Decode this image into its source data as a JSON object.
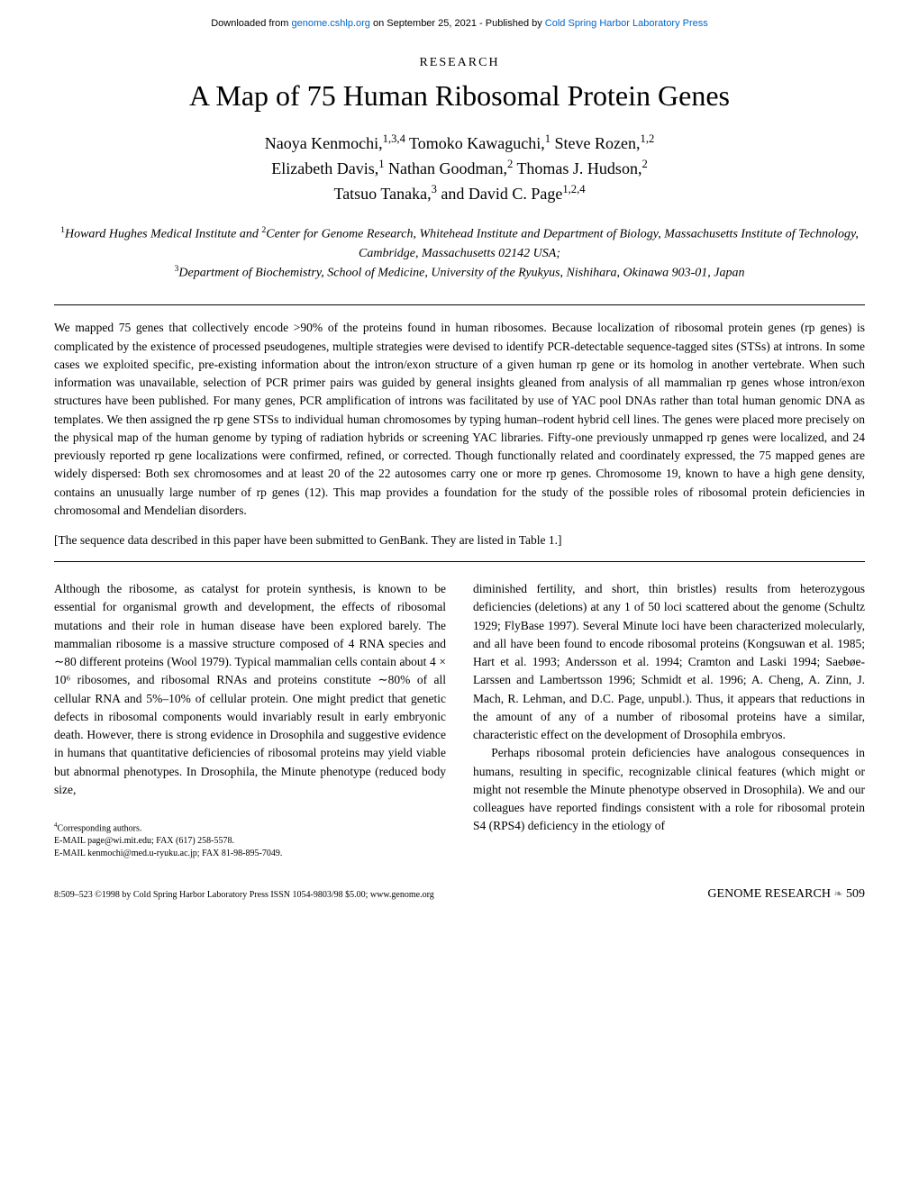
{
  "header": {
    "prefix": "Downloaded from ",
    "link1_text": "genome.cshlp.org",
    "middle": " on September 25, 2021 - Published by ",
    "link2_text": "Cold Spring Harbor Laboratory Press"
  },
  "section_label": "RESEARCH",
  "title": "A Map of 75 Human Ribosomal Protein Genes",
  "authors_line1": "Naoya Kenmochi,",
  "authors_sup1": "1,3,4",
  "authors_line1b": " Tomoko Kawaguchi,",
  "authors_sup2": "1",
  "authors_line1c": " Steve Rozen,",
  "authors_sup3": "1,2",
  "authors_line2a": "Elizabeth Davis,",
  "authors_sup4": "1",
  "authors_line2b": " Nathan Goodman,",
  "authors_sup5": "2",
  "authors_line2c": " Thomas J. Hudson,",
  "authors_sup6": "2",
  "authors_line3a": "Tatsuo Tanaka,",
  "authors_sup7": "3",
  "authors_line3b": " and David C. Page",
  "authors_sup8": "1,2,4",
  "affiliations": {
    "aff1_sup": "1",
    "aff1": "Howard Hughes Medical Institute and ",
    "aff2_sup": "2",
    "aff2": "Center for Genome Research, Whitehead Institute and Department of Biology, Massachusetts Institute of Technology, Cambridge, Massachusetts 02142 USA; ",
    "aff3_sup": "3",
    "aff3": "Department of Biochemistry, School of Medicine, University of the Ryukyus, Nishihara, Okinawa 903-01, Japan"
  },
  "abstract": "We mapped 75 genes that collectively encode >90% of the proteins found in human ribosomes. Because localization of ribosomal protein genes (rp genes) is complicated by the existence of processed pseudogenes, multiple strategies were devised to identify PCR-detectable sequence-tagged sites (STSs) at introns. In some cases we exploited specific, pre-existing information about the intron/exon structure of a given human rp gene or its homolog in another vertebrate. When such information was unavailable, selection of PCR primer pairs was guided by general insights gleaned from analysis of all mammalian rp genes whose intron/exon structures have been published. For many genes, PCR amplification of introns was facilitated by use of YAC pool DNAs rather than total human genomic DNA as templates. We then assigned the rp gene STSs to individual human chromosomes by typing human–rodent hybrid cell lines. The genes were placed more precisely on the physical map of the human genome by typing of radiation hybrids or screening YAC libraries. Fifty-one previously unmapped rp genes were localized, and 24 previously reported rp gene localizations were confirmed, refined, or corrected. Though functionally related and coordinately expressed, the 75 mapped genes are widely dispersed: Both sex chromosomes and at least 20 of the 22 autosomes carry one or more rp genes. Chromosome 19, known to have a high gene density, contains an unusually large number of rp genes (12). This map provides a foundation for the study of the possible roles of ribosomal protein deficiencies in chromosomal and Mendelian disorders.",
  "submission_note": "[The sequence data described in this paper have been submitted to GenBank. They are listed in Table 1.]",
  "body_col1_p1": "Although the ribosome, as catalyst for protein synthesis, is known to be essential for organismal growth and development, the effects of ribosomal mutations and their role in human disease have been explored barely. The mammalian ribosome is a massive structure composed of 4 RNA species and ∼80 different proteins (Wool 1979). Typical mammalian cells contain about 4 × 10⁶ ribosomes, and ribosomal RNAs and proteins constitute ∼80% of all cellular RNA and 5%–10% of cellular protein. One might predict that genetic defects in ribosomal components would invariably result in early embryonic death. However, there is strong evidence in Drosophila and suggestive evidence in humans that quantitative deficiencies of ribosomal proteins may yield viable but abnormal phenotypes. In Drosophila, the Minute phenotype (reduced body size,",
  "body_col2_p1": "diminished fertility, and short, thin bristles) results from heterozygous deficiencies (deletions) at any 1 of 50 loci scattered about the genome (Schultz 1929; FlyBase 1997). Several Minute loci have been characterized molecularly, and all have been found to encode ribosomal proteins (Kongsuwan et al. 1985; Hart et al. 1993; Andersson et al. 1994; Cramton and Laski 1994; Saebøe-Larssen and Lambertsson 1996; Schmidt et al. 1996; A. Cheng, A. Zinn, J. Mach, R. Lehman, and D.C. Page, unpubl.). Thus, it appears that reductions in the amount of any of a number of ribosomal proteins have a similar, characteristic effect on the development of Drosophila embryos.",
  "body_col2_p2": "Perhaps ribosomal protein deficiencies have analogous consequences in humans, resulting in specific, recognizable clinical features (which might or might not resemble the Minute phenotype observed in Drosophila). We and our colleagues have reported findings consistent with a role for ribosomal protein S4 (RPS4) deficiency in the etiology of",
  "footnotes": {
    "corresponding_sup": "4",
    "corresponding": "Corresponding authors.",
    "email1": "E-MAIL page@wi.mit.edu; FAX (617) 258-5578.",
    "email2": "E-MAIL kenmochi@med.u-ryuku.ac.jp; FAX 81-98-895-7049."
  },
  "footer": {
    "copyright": "8:509–523 ©1998 by Cold Spring Harbor Laboratory Press ISSN 1054-9803/98 $5.00; www.genome.org",
    "journal": "GENOME RESEARCH",
    "page": "509"
  }
}
